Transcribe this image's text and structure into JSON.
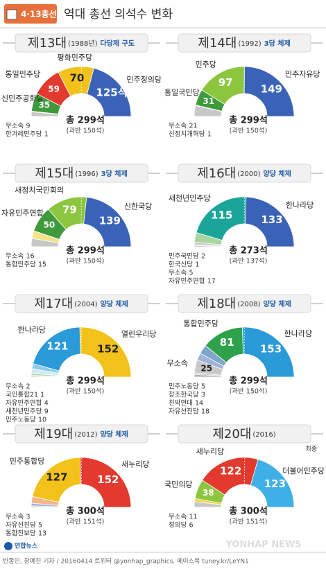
{
  "header": {
    "badge": "4·13총선",
    "title": "역대 총선 의석수 변화"
  },
  "footer": {
    "logo": "연합뉴스",
    "credit": "빈종민, 장예진 기자 / 20160414  트위터 @yonhap_graphics, 페이스북 tuney.kr/LeYN1",
    "watermark": "YONHAP NEWS"
  },
  "chart_data": [
    {
      "type": "pie",
      "title": "제13대",
      "period": "(1988년)",
      "subtitle": "다당제 구도",
      "categories": [
        "무소속",
        "한겨레민주당",
        "신민주공화당",
        "통일민주당",
        "평화민주당",
        "민주정의당"
      ],
      "values": [
        9,
        1,
        35,
        59,
        70,
        125
      ],
      "value_labels": [
        "9",
        "1",
        "35",
        "59",
        "70",
        "125석"
      ],
      "colors": [
        "#c8c8c8",
        "#a8a8a8",
        "#3f9a3c",
        "#e23a2e",
        "#f2c21b",
        "#3a63b8"
      ],
      "total": 299,
      "total_label": "총 299석",
      "majority": 150,
      "majority_label": "(과반 150석)"
    },
    {
      "type": "pie",
      "title": "제14대",
      "period": "(1992)",
      "subtitle": "3당 체제",
      "categories": [
        "무소속",
        "신정치개혁당",
        "통일국민당",
        "민주당",
        "민주자유당"
      ],
      "values": [
        21,
        1,
        31,
        97,
        149
      ],
      "colors": [
        "#c8c8c8",
        "#a8a8a8",
        "#3f9a3c",
        "#8cc63f",
        "#3a63b8"
      ],
      "total": 299,
      "total_label": "총 299석",
      "majority": 150,
      "majority_label": "(과반 150석)"
    },
    {
      "type": "pie",
      "title": "제15대",
      "period": "(1996)",
      "subtitle": "3당 체제",
      "categories": [
        "무소속",
        "통합민주당",
        "자유민주연합",
        "새정치국민회의",
        "신한국당"
      ],
      "values": [
        16,
        15,
        50,
        79,
        139
      ],
      "colors": [
        "#c8c8c8",
        "#f3e48a",
        "#3f9a3c",
        "#8cc63f",
        "#3a63b8"
      ],
      "total": 299,
      "total_label": "총 299석",
      "majority": 150,
      "majority_label": "(과반 150석)"
    },
    {
      "type": "pie",
      "title": "제16대",
      "period": "(2000)",
      "subtitle": "양당 체제",
      "categories": [
        "민주국민당",
        "한국신당",
        "무소속",
        "자유민주연합",
        "새천년민주당",
        "한나라당"
      ],
      "values": [
        2,
        1,
        5,
        17,
        115,
        133
      ],
      "colors": [
        "#a8a8a8",
        "#b8b8b8",
        "#c8c8c8",
        "#a9d6a0",
        "#1ba59a",
        "#3a63b8"
      ],
      "total": 273,
      "total_label": "총 273석",
      "majority": 137,
      "majority_label": "(과반 137석)"
    },
    {
      "type": "pie",
      "title": "제17대",
      "period": "(2004)",
      "subtitle": "양당 체제",
      "categories": [
        "무소속",
        "국민통합21",
        "자유민주연합",
        "새천년민주당",
        "민주노동당",
        "한나라당",
        "열린우리당"
      ],
      "values": [
        2,
        1,
        4,
        9,
        10,
        121,
        152
      ],
      "colors": [
        "#c8c8c8",
        "#b0b0b0",
        "#a9d6a0",
        "#cfe8f5",
        "#8ecbe8",
        "#2a9ad8",
        "#f2c21b"
      ],
      "total": 299,
      "total_label": "총 299석",
      "majority": 150,
      "majority_label": "(과반 150석)"
    },
    {
      "type": "pie",
      "title": "제18대",
      "period": "(2008)",
      "subtitle": "양당 체제",
      "categories": [
        "민주노동당",
        "창조한국당",
        "무소속",
        "친박연대",
        "자유선진당",
        "통합민주당",
        "한나라당"
      ],
      "values": [
        5,
        3,
        25,
        14,
        18,
        81,
        153
      ],
      "colors": [
        "#b0b0b0",
        "#bcbcbc",
        "#c8c8c8",
        "#9fb4d8",
        "#7fa6c9",
        "#2ea24a",
        "#2a9ad8"
      ],
      "total": 299,
      "total_label": "총 299석",
      "majority": 150,
      "majority_label": "(과반 150석)"
    },
    {
      "type": "pie",
      "title": "제19대",
      "period": "(2012)",
      "subtitle": "양당 체제",
      "categories": [
        "무소속",
        "자유선진당",
        "통합진보당",
        "민주통합당",
        "새누리당"
      ],
      "values": [
        3,
        5,
        13,
        127,
        152
      ],
      "colors": [
        "#c8c8c8",
        "#9fb4d8",
        "#f6b48a",
        "#f2c21b",
        "#e23a2e"
      ],
      "total": 300,
      "total_label": "총 300석",
      "majority": 151,
      "majority_label": "(과반 151석)"
    },
    {
      "type": "pie",
      "title": "제20대",
      "period": "(2016)",
      "annotation": "최종",
      "categories": [
        "무소속",
        "정의당",
        "국민의당",
        "새누리당",
        "더불어민주당"
      ],
      "values": [
        11,
        6,
        38,
        122,
        123
      ],
      "colors": [
        "#c8c8c8",
        "#f5d33a",
        "#8cc63f",
        "#e23a2e",
        "#3fb0e6"
      ],
      "total": 300,
      "total_label": "총 300석",
      "majority": 151,
      "majority_label": "(과반 151석)"
    }
  ]
}
